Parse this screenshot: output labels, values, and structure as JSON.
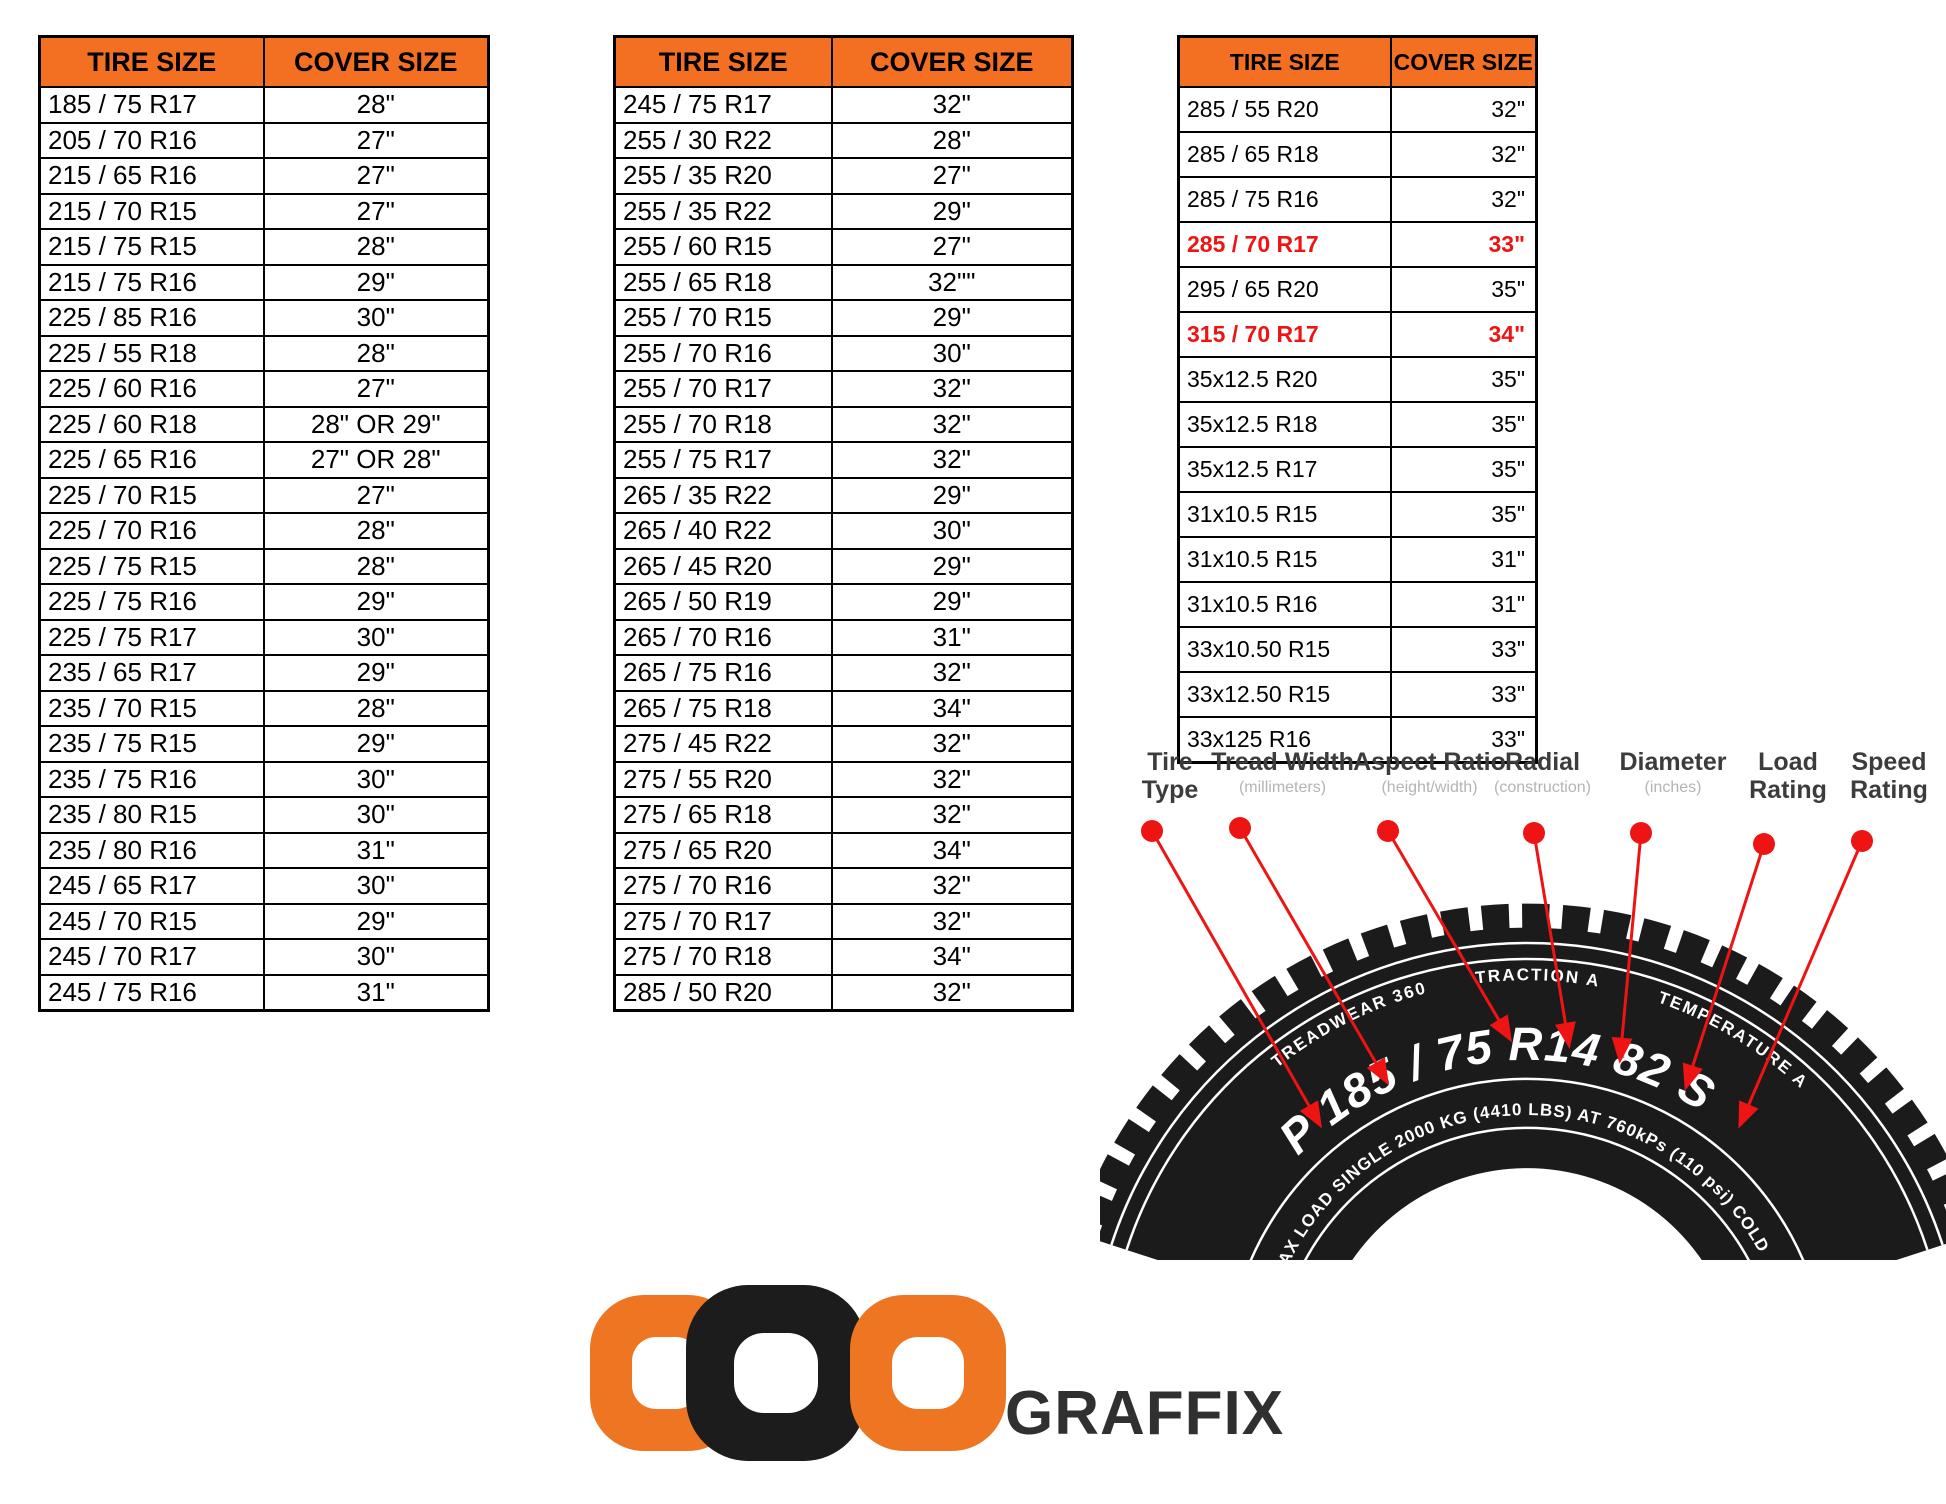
{
  "colors": {
    "header_bg": "#f36f22",
    "highlight_red": "#ee1414",
    "table_border": "#000000",
    "logo_orange": "#ee7623",
    "logo_dark": "#1c1c1c",
    "tire_black": "#1b1b1b"
  },
  "tables": [
    {
      "headers": [
        "TIRE SIZE",
        "COVER SIZE"
      ],
      "rows": [
        {
          "tire": "185 / 75 R17",
          "cover": "28\"",
          "highlight": false
        },
        {
          "tire": "205 / 70 R16",
          "cover": "27\"",
          "highlight": false
        },
        {
          "tire": "215 / 65 R16",
          "cover": "27\"",
          "highlight": false
        },
        {
          "tire": "215 / 70 R15",
          "cover": "27\"",
          "highlight": false
        },
        {
          "tire": "215 / 75 R15",
          "cover": "28\"",
          "highlight": false
        },
        {
          "tire": "215 / 75 R16",
          "cover": "29\"",
          "highlight": false
        },
        {
          "tire": "225 / 85 R16",
          "cover": "30\"",
          "highlight": false
        },
        {
          "tire": "225 / 55 R18",
          "cover": "28\"",
          "highlight": false
        },
        {
          "tire": "225 / 60 R16",
          "cover": "27\"",
          "highlight": false
        },
        {
          "tire": "225 / 60 R18",
          "cover": "28\" OR 29\"",
          "highlight": false
        },
        {
          "tire": "225 / 65 R16",
          "cover": "27\" OR 28\"",
          "highlight": false
        },
        {
          "tire": "225 / 70 R15",
          "cover": "27\"",
          "highlight": false
        },
        {
          "tire": "225 / 70 R16",
          "cover": "28\"",
          "highlight": false
        },
        {
          "tire": "225 / 75 R15",
          "cover": "28\"",
          "highlight": false
        },
        {
          "tire": "225 / 75 R16",
          "cover": "29\"",
          "highlight": false
        },
        {
          "tire": "225 / 75 R17",
          "cover": "30\"",
          "highlight": false
        },
        {
          "tire": "235 / 65 R17",
          "cover": "29\"",
          "highlight": false
        },
        {
          "tire": "235 / 70 R15",
          "cover": "28\"",
          "highlight": false
        },
        {
          "tire": "235 / 75 R15",
          "cover": "29\"",
          "highlight": false
        },
        {
          "tire": "235 / 75 R16",
          "cover": "30\"",
          "highlight": false
        },
        {
          "tire": "235 / 80 R15",
          "cover": "30\"",
          "highlight": false
        },
        {
          "tire": "235 / 80 R16",
          "cover": "31\"",
          "highlight": false
        },
        {
          "tire": "245 / 65 R17",
          "cover": "30\"",
          "highlight": false
        },
        {
          "tire": "245 / 70 R15",
          "cover": "29\"",
          "highlight": false
        },
        {
          "tire": "245 / 70 R17",
          "cover": "30\"",
          "highlight": false
        },
        {
          "tire": "245 / 75 R16",
          "cover": "31\"",
          "highlight": false
        }
      ]
    },
    {
      "headers": [
        "TIRE SIZE",
        "COVER SIZE"
      ],
      "rows": [
        {
          "tire": "245 / 75 R17",
          "cover": "32\"",
          "highlight": false
        },
        {
          "tire": "255 / 30 R22",
          "cover": "28\"",
          "highlight": false
        },
        {
          "tire": "255 / 35 R20",
          "cover": "27\"",
          "highlight": false
        },
        {
          "tire": "255 / 35 R22",
          "cover": "29\"",
          "highlight": false
        },
        {
          "tire": "255 / 60 R15",
          "cover": "27\"",
          "highlight": false
        },
        {
          "tire": "255 / 65 R18",
          "cover": "32\"\"",
          "highlight": false
        },
        {
          "tire": "255 / 70 R15",
          "cover": "29\"",
          "highlight": false
        },
        {
          "tire": "255 / 70 R16",
          "cover": "30\"",
          "highlight": false
        },
        {
          "tire": "255 / 70 R17",
          "cover": "32\"",
          "highlight": false
        },
        {
          "tire": "255 / 70 R18",
          "cover": "32\"",
          "highlight": false
        },
        {
          "tire": "255 / 75 R17",
          "cover": "32\"",
          "highlight": false
        },
        {
          "tire": "265 / 35 R22",
          "cover": "29\"",
          "highlight": false
        },
        {
          "tire": "265 / 40 R22",
          "cover": "30\"",
          "highlight": false
        },
        {
          "tire": "265 / 45 R20",
          "cover": "29\"",
          "highlight": false
        },
        {
          "tire": "265 / 50 R19",
          "cover": "29\"",
          "highlight": false
        },
        {
          "tire": "265 / 70 R16",
          "cover": "31\"",
          "highlight": false
        },
        {
          "tire": "265 / 75 R16",
          "cover": "32\"",
          "highlight": false
        },
        {
          "tire": "265 / 75 R18",
          "cover": "34\"",
          "highlight": false
        },
        {
          "tire": "275 / 45 R22",
          "cover": "32\"",
          "highlight": false
        },
        {
          "tire": "275 / 55 R20",
          "cover": "32\"",
          "highlight": false
        },
        {
          "tire": "275 / 65 R18",
          "cover": "32\"",
          "highlight": false
        },
        {
          "tire": "275 / 65 R20",
          "cover": "34\"",
          "highlight": false
        },
        {
          "tire": "275 / 70 R16",
          "cover": "32\"",
          "highlight": false
        },
        {
          "tire": "275 / 70 R17",
          "cover": "32\"",
          "highlight": false
        },
        {
          "tire": "275 / 70 R18",
          "cover": "34\"",
          "highlight": false
        },
        {
          "tire": "285 / 50 R20",
          "cover": "32\"",
          "highlight": false
        }
      ]
    },
    {
      "headers": [
        "TIRE SIZE",
        "COVER SIZE"
      ],
      "rows": [
        {
          "tire": "285 / 55 R20",
          "cover": "32\"",
          "highlight": false
        },
        {
          "tire": "285 / 65 R18",
          "cover": "32\"",
          "highlight": false
        },
        {
          "tire": "285 / 75 R16",
          "cover": "32\"",
          "highlight": false
        },
        {
          "tire": "285 / 70 R17",
          "cover": "33\"",
          "highlight": true
        },
        {
          "tire": "295 / 65 R20",
          "cover": "35\"",
          "highlight": false
        },
        {
          "tire": "315 / 70 R17",
          "cover": "34\"",
          "highlight": true
        },
        {
          "tire": "35x12.5 R20",
          "cover": "35\"",
          "highlight": false
        },
        {
          "tire": "35x12.5 R18",
          "cover": "35\"",
          "highlight": false
        },
        {
          "tire": "35x12.5 R17",
          "cover": "35\"",
          "highlight": false
        },
        {
          "tire": "31x10.5 R15",
          "cover": "35\"",
          "highlight": false
        },
        {
          "tire": "31x10.5 R15",
          "cover": "31\"",
          "highlight": false
        },
        {
          "tire": "31x10.5 R16",
          "cover": "31\"",
          "highlight": false
        },
        {
          "tire": "33x10.50 R15",
          "cover": "33\"",
          "highlight": false
        },
        {
          "tire": "33x12.50 R15",
          "cover": "33\"",
          "highlight": false
        },
        {
          "tire": "33x125 R16",
          "cover": "33\"",
          "highlight": false
        }
      ]
    }
  ],
  "diagram": {
    "labels": [
      {
        "label": "Tire Type",
        "sub": ""
      },
      {
        "label": "Tread Width",
        "sub": "(millimeters)"
      },
      {
        "label": "Aspect Ratio",
        "sub": "(height/width)"
      },
      {
        "label": "Radial",
        "sub": "(construction)"
      },
      {
        "label": "Diameter",
        "sub": "(inches)"
      },
      {
        "label": "Load Rating",
        "sub": ""
      },
      {
        "label": "Speed Rating",
        "sub": ""
      }
    ],
    "tire_text": {
      "treadwear": "TREADWEAR 360",
      "traction": "TRACTION A",
      "temperature": "TEMPERATURE A",
      "size_code": "P 185 / 75 R14 82 S",
      "max_load": "MAX LOAD SINGLE 2000 KG (4410 LBS) AT 760kPs (110 psi) COLD"
    }
  },
  "logo": {
    "text": "GRAFFIX"
  }
}
